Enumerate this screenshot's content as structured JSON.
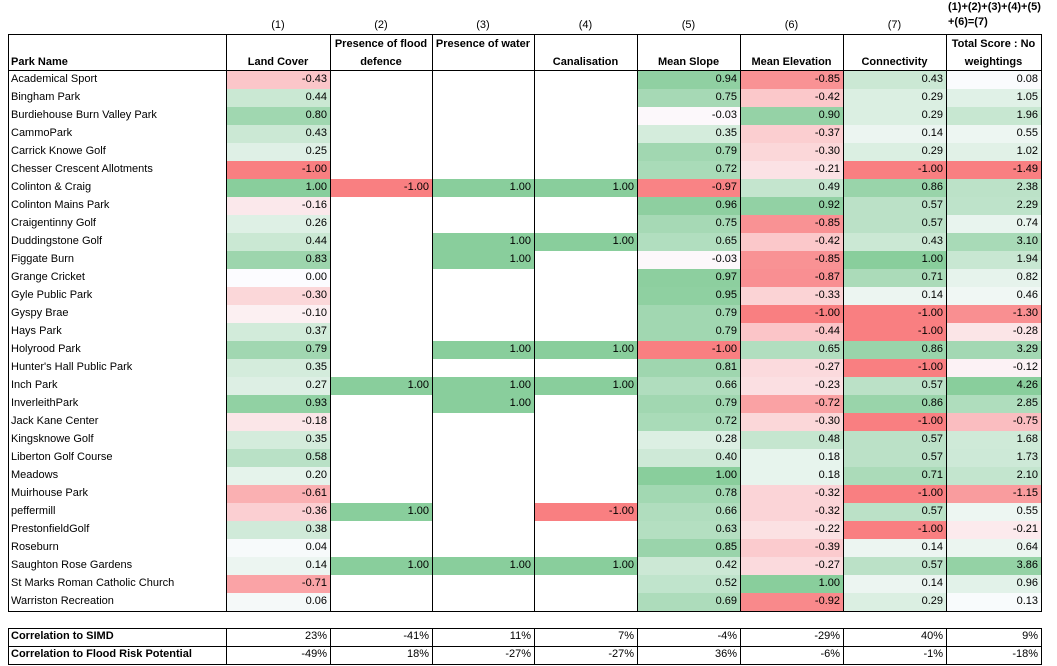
{
  "column_indices": [
    "(1)",
    "(2)",
    "(3)",
    "(4)",
    "(5)",
    "(6)",
    "(7)",
    "(1)+(2)+(3)+(4)+(5)+(6)=(7)"
  ],
  "headers": [
    "Park Name",
    "Land Cover",
    "Presence of flood defence",
    "Presence of water",
    "Canalisation",
    "Mean Slope",
    "Mean Elevation",
    "Connectivity",
    "Total Score : No weightings"
  ],
  "rows": [
    {
      "name": "Academical Sport",
      "values": [
        "-0.43",
        "",
        "",
        "",
        "0.94",
        "-0.85",
        "0.43",
        "0.08"
      ]
    },
    {
      "name": "Bingham Park",
      "values": [
        "0.44",
        "",
        "",
        "",
        "0.75",
        "-0.42",
        "0.29",
        "1.05"
      ]
    },
    {
      "name": "Burdiehouse Burn Valley Park",
      "values": [
        "0.80",
        "",
        "",
        "",
        "-0.03",
        "0.90",
        "0.29",
        "1.96"
      ]
    },
    {
      "name": "CammoPark",
      "values": [
        "0.43",
        "",
        "",
        "",
        "0.35",
        "-0.37",
        "0.14",
        "0.55"
      ]
    },
    {
      "name": "Carrick Knowe Golf",
      "values": [
        "0.25",
        "",
        "",
        "",
        "0.79",
        "-0.30",
        "0.29",
        "1.02"
      ]
    },
    {
      "name": "Chesser Crescent Allotments",
      "values": [
        "-1.00",
        "",
        "",
        "",
        "0.72",
        "-0.21",
        "-1.00",
        "-1.49"
      ]
    },
    {
      "name": "Colinton & Craig",
      "values": [
        "1.00",
        "-1.00",
        "1.00",
        "1.00",
        "-0.97",
        "0.49",
        "0.86",
        "2.38"
      ]
    },
    {
      "name": "Colinton Mains Park",
      "values": [
        "-0.16",
        "",
        "",
        "",
        "0.96",
        "0.92",
        "0.57",
        "2.29"
      ]
    },
    {
      "name": "Craigentinny Golf",
      "values": [
        "0.26",
        "",
        "",
        "",
        "0.75",
        "-0.85",
        "0.57",
        "0.74"
      ]
    },
    {
      "name": "Duddingstone Golf",
      "values": [
        "0.44",
        "",
        "1.00",
        "1.00",
        "0.65",
        "-0.42",
        "0.43",
        "3.10"
      ]
    },
    {
      "name": "Figgate Burn",
      "values": [
        "0.83",
        "",
        "1.00",
        "",
        "-0.03",
        "-0.85",
        "1.00",
        "1.94"
      ]
    },
    {
      "name": "Grange Cricket",
      "values": [
        "0.00",
        "",
        "",
        "",
        "0.97",
        "-0.87",
        "0.71",
        "0.82"
      ]
    },
    {
      "name": "Gyle Public Park",
      "values": [
        "-0.30",
        "",
        "",
        "",
        "0.95",
        "-0.33",
        "0.14",
        "0.46"
      ]
    },
    {
      "name": "Gyspy Brae",
      "values": [
        "-0.10",
        "",
        "",
        "",
        "0.79",
        "-1.00",
        "-1.00",
        "-1.30"
      ]
    },
    {
      "name": "Hays Park",
      "values": [
        "0.37",
        "",
        "",
        "",
        "0.79",
        "-0.44",
        "-1.00",
        "-0.28"
      ]
    },
    {
      "name": "Holyrood Park",
      "values": [
        "0.79",
        "",
        "1.00",
        "1.00",
        "-1.00",
        "0.65",
        "0.86",
        "3.29"
      ]
    },
    {
      "name": "Hunter's Hall Public Park",
      "values": [
        "0.35",
        "",
        "",
        "",
        "0.81",
        "-0.27",
        "-1.00",
        "-0.12"
      ]
    },
    {
      "name": "Inch Park",
      "values": [
        "0.27",
        "1.00",
        "1.00",
        "1.00",
        "0.66",
        "-0.23",
        "0.57",
        "4.26"
      ]
    },
    {
      "name": "InverleithPark",
      "values": [
        "0.93",
        "",
        "1.00",
        "",
        "0.79",
        "-0.72",
        "0.86",
        "2.85"
      ]
    },
    {
      "name": "Jack Kane Center",
      "values": [
        "-0.18",
        "",
        "",
        "",
        "0.72",
        "-0.30",
        "-1.00",
        "-0.75"
      ]
    },
    {
      "name": "Kingsknowe Golf",
      "values": [
        "0.35",
        "",
        "",
        "",
        "0.28",
        "0.48",
        "0.57",
        "1.68"
      ]
    },
    {
      "name": "Liberton Golf Course",
      "values": [
        "0.58",
        "",
        "",
        "",
        "0.40",
        "0.18",
        "0.57",
        "1.73"
      ]
    },
    {
      "name": "Meadows",
      "values": [
        "0.20",
        "",
        "",
        "",
        "1.00",
        "0.18",
        "0.71",
        "2.10"
      ]
    },
    {
      "name": "Muirhouse Park",
      "values": [
        "-0.61",
        "",
        "",
        "",
        "0.78",
        "-0.32",
        "-1.00",
        "-1.15"
      ]
    },
    {
      "name": "peffermill",
      "values": [
        "-0.36",
        "1.00",
        "",
        "-1.00",
        "0.66",
        "-0.32",
        "0.57",
        "0.55"
      ]
    },
    {
      "name": "PrestonfieldGolf",
      "values": [
        "0.38",
        "",
        "",
        "",
        "0.63",
        "-0.22",
        "-1.00",
        "-0.21"
      ]
    },
    {
      "name": "Roseburn",
      "values": [
        "0.04",
        "",
        "",
        "",
        "0.85",
        "-0.39",
        "0.14",
        "0.64"
      ]
    },
    {
      "name": "Saughton Rose Gardens",
      "values": [
        "0.14",
        "1.00",
        "1.00",
        "1.00",
        "0.42",
        "-0.27",
        "0.57",
        "3.86"
      ]
    },
    {
      "name": "St Marks Roman Catholic Church",
      "values": [
        "-0.71",
        "",
        "",
        "",
        "0.52",
        "1.00",
        "0.14",
        "0.96"
      ]
    },
    {
      "name": "Warriston Recreation",
      "values": [
        "0.06",
        "",
        "",
        "",
        "0.69",
        "-0.92",
        "0.29",
        "0.13"
      ]
    }
  ],
  "footer": [
    {
      "label": "Correlation to SIMD",
      "values": [
        "23%",
        "-41%",
        "11%",
        "7%",
        "-4%",
        "-29%",
        "40%",
        "9%"
      ]
    },
    {
      "label": "Correlation to Flood Risk Potential",
      "values": [
        "-49%",
        "18%",
        "-27%",
        "-27%",
        "36%",
        "-6%",
        "-1%",
        "-18%"
      ]
    }
  ],
  "colors": {
    "positive": "#63be7b",
    "negative": "#f8696b",
    "neutral": "#fcfcff",
    "grid": "#000000"
  }
}
